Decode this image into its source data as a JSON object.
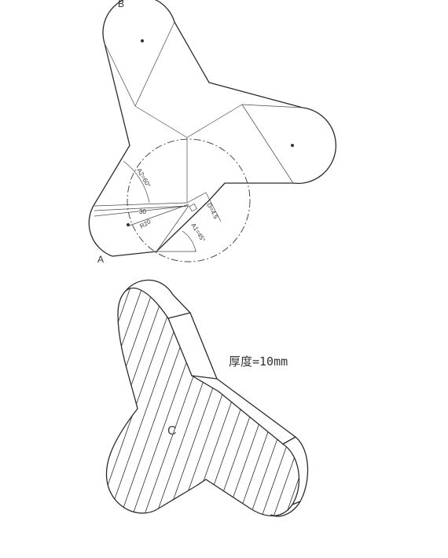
{
  "labels": {
    "point_a": "A",
    "point_b": "B",
    "face_c": "C"
  },
  "dimensions": {
    "a2": "A2=60°",
    "a1": "A1=45°",
    "d": "D=4.5",
    "r": "R20",
    "len": "30"
  },
  "note": "厚度=10mm"
}
